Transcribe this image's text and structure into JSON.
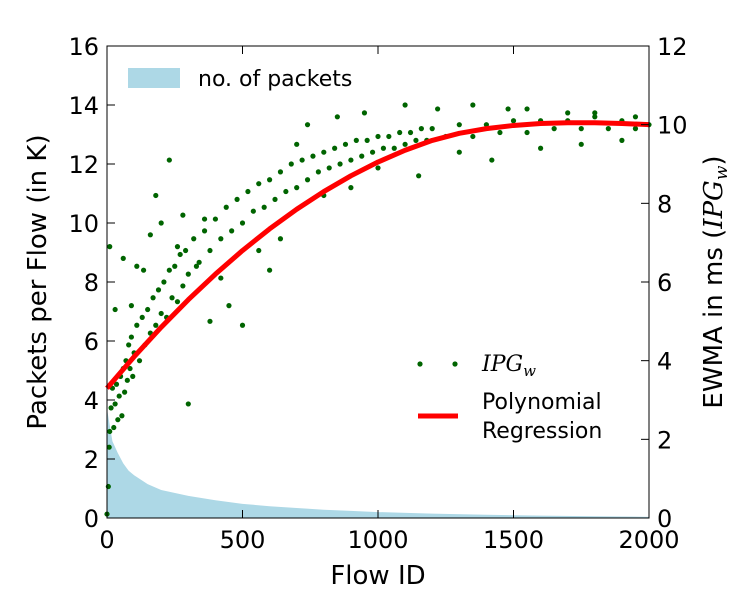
{
  "chart_data": {
    "type": "scatter",
    "xlabel": "Flow ID",
    "ylabel": "Packets per Flow (in K)",
    "y2label_prefix": "EWMA in ms (",
    "y2label_math": "IPG",
    "y2label_sub": "w",
    "y2label_suffix": ")",
    "xlim": [
      0,
      2000
    ],
    "ylim": [
      0,
      16
    ],
    "y2lim": [
      0,
      12
    ],
    "xticks": [
      0,
      500,
      1000,
      1500,
      2000
    ],
    "yticks": [
      0,
      2,
      4,
      6,
      8,
      10,
      12,
      14,
      16
    ],
    "y2ticks": [
      0,
      2,
      4,
      6,
      8,
      10,
      12
    ],
    "grid": false,
    "series": [
      {
        "name": "no. of packets",
        "kind": "area",
        "axis": "left",
        "color": "#add8e6",
        "x": [
          0,
          20,
          40,
          60,
          80,
          100,
          150,
          200,
          300,
          400,
          500,
          600,
          700,
          800,
          900,
          1000,
          1200,
          1400,
          1600,
          1800,
          2000
        ],
        "y": [
          3.7,
          2.6,
          2.2,
          1.85,
          1.6,
          1.45,
          1.15,
          0.95,
          0.75,
          0.6,
          0.48,
          0.4,
          0.34,
          0.28,
          0.24,
          0.2,
          0.15,
          0.11,
          0.08,
          0.06,
          0.04
        ]
      },
      {
        "name": "IPG",
        "name_sub": "w",
        "kind": "scatter",
        "axis": "right",
        "color": "#006400",
        "points": [
          [
            0,
            0.1
          ],
          [
            5,
            0.8
          ],
          [
            8,
            1.8
          ],
          [
            10,
            2.2
          ],
          [
            15,
            2.8
          ],
          [
            20,
            3.3
          ],
          [
            25,
            2.3
          ],
          [
            30,
            2.9
          ],
          [
            35,
            3.4
          ],
          [
            40,
            2.5
          ],
          [
            45,
            3.1
          ],
          [
            50,
            3.6
          ],
          [
            55,
            2.6
          ],
          [
            60,
            3.8
          ],
          [
            65,
            3.2
          ],
          [
            70,
            4.0
          ],
          [
            75,
            3.5
          ],
          [
            80,
            4.4
          ],
          [
            85,
            3.8
          ],
          [
            90,
            4.6
          ],
          [
            95,
            3.6
          ],
          [
            100,
            4.2
          ],
          [
            110,
            4.9
          ],
          [
            120,
            4.0
          ],
          [
            130,
            5.1
          ],
          [
            140,
            4.4
          ],
          [
            150,
            5.3
          ],
          [
            160,
            4.7
          ],
          [
            170,
            5.6
          ],
          [
            180,
            4.9
          ],
          [
            190,
            5.8
          ],
          [
            200,
            5.2
          ],
          [
            210,
            6.0
          ],
          [
            220,
            5.1
          ],
          [
            230,
            6.3
          ],
          [
            240,
            5.6
          ],
          [
            250,
            6.4
          ],
          [
            260,
            5.5
          ],
          [
            270,
            6.7
          ],
          [
            280,
            5.9
          ],
          [
            290,
            6.8
          ],
          [
            300,
            6.2
          ],
          [
            320,
            7.1
          ],
          [
            340,
            6.5
          ],
          [
            360,
            7.3
          ],
          [
            380,
            6.8
          ],
          [
            400,
            7.6
          ],
          [
            420,
            7.1
          ],
          [
            440,
            7.9
          ],
          [
            460,
            7.3
          ],
          [
            480,
            8.1
          ],
          [
            500,
            7.5
          ],
          [
            520,
            8.3
          ],
          [
            540,
            7.8
          ],
          [
            560,
            8.5
          ],
          [
            580,
            7.9
          ],
          [
            600,
            8.6
          ],
          [
            620,
            8.1
          ],
          [
            640,
            8.8
          ],
          [
            660,
            8.3
          ],
          [
            680,
            9.0
          ],
          [
            700,
            8.4
          ],
          [
            720,
            9.1
          ],
          [
            740,
            8.6
          ],
          [
            760,
            9.2
          ],
          [
            780,
            8.8
          ],
          [
            800,
            9.3
          ],
          [
            820,
            8.9
          ],
          [
            840,
            9.4
          ],
          [
            860,
            9.0
          ],
          [
            880,
            9.5
          ],
          [
            900,
            9.1
          ],
          [
            920,
            9.6
          ],
          [
            940,
            9.2
          ],
          [
            960,
            9.6
          ],
          [
            980,
            9.3
          ],
          [
            1000,
            9.7
          ],
          [
            1020,
            9.4
          ],
          [
            1040,
            9.7
          ],
          [
            1060,
            9.4
          ],
          [
            1080,
            9.8
          ],
          [
            1100,
            9.5
          ],
          [
            1120,
            9.8
          ],
          [
            1140,
            9.6
          ],
          [
            1160,
            9.9
          ],
          [
            1180,
            9.6
          ],
          [
            1200,
            9.9
          ],
          [
            1250,
            9.7
          ],
          [
            1300,
            10.0
          ],
          [
            1350,
            9.7
          ],
          [
            1400,
            10.0
          ],
          [
            1450,
            9.8
          ],
          [
            1500,
            10.1
          ],
          [
            1550,
            9.8
          ],
          [
            1600,
            10.1
          ],
          [
            1650,
            9.9
          ],
          [
            1700,
            10.1
          ],
          [
            1750,
            9.9
          ],
          [
            1800,
            10.2
          ],
          [
            1850,
            9.9
          ],
          [
            1900,
            10.1
          ],
          [
            1950,
            9.9
          ],
          [
            2000,
            10.0
          ],
          [
            10,
            6.9
          ],
          [
            30,
            5.3
          ],
          [
            60,
            6.6
          ],
          [
            90,
            5.4
          ],
          [
            110,
            6.4
          ],
          [
            135,
            6.3
          ],
          [
            160,
            7.2
          ],
          [
            180,
            8.2
          ],
          [
            200,
            7.5
          ],
          [
            230,
            9.1
          ],
          [
            260,
            6.9
          ],
          [
            280,
            7.7
          ],
          [
            300,
            2.9
          ],
          [
            330,
            6.4
          ],
          [
            360,
            7.6
          ],
          [
            380,
            5.0
          ],
          [
            420,
            6.1
          ],
          [
            450,
            5.4
          ],
          [
            500,
            4.9
          ],
          [
            560,
            6.8
          ],
          [
            600,
            6.3
          ],
          [
            640,
            7.1
          ],
          [
            700,
            9.5
          ],
          [
            740,
            10.0
          ],
          [
            800,
            8.2
          ],
          [
            850,
            10.2
          ],
          [
            900,
            8.4
          ],
          [
            950,
            10.3
          ],
          [
            1000,
            8.9
          ],
          [
            1100,
            10.5
          ],
          [
            1150,
            8.7
          ],
          [
            1220,
            10.4
          ],
          [
            1300,
            9.3
          ],
          [
            1350,
            10.5
          ],
          [
            1420,
            9.1
          ],
          [
            1480,
            10.4
          ],
          [
            1550,
            10.4
          ],
          [
            1600,
            9.4
          ],
          [
            1700,
            10.3
          ],
          [
            1750,
            9.5
          ],
          [
            1800,
            10.3
          ],
          [
            1900,
            9.6
          ],
          [
            1950,
            10.2
          ]
        ]
      },
      {
        "name": "Polynomial Regression",
        "legend_line1": "Polynomial",
        "legend_line2": "Regression",
        "kind": "line",
        "axis": "right",
        "color": "#ff0000",
        "x": [
          0,
          100,
          200,
          300,
          400,
          500,
          600,
          700,
          800,
          900,
          1000,
          1100,
          1200,
          1300,
          1400,
          1500,
          1600,
          1700,
          1800,
          1900,
          2000
        ],
        "y": [
          3.3,
          4.1,
          4.85,
          5.55,
          6.2,
          6.8,
          7.35,
          7.85,
          8.3,
          8.7,
          9.05,
          9.35,
          9.6,
          9.78,
          9.9,
          9.98,
          10.03,
          10.05,
          10.05,
          10.03,
          10.0
        ]
      }
    ]
  }
}
